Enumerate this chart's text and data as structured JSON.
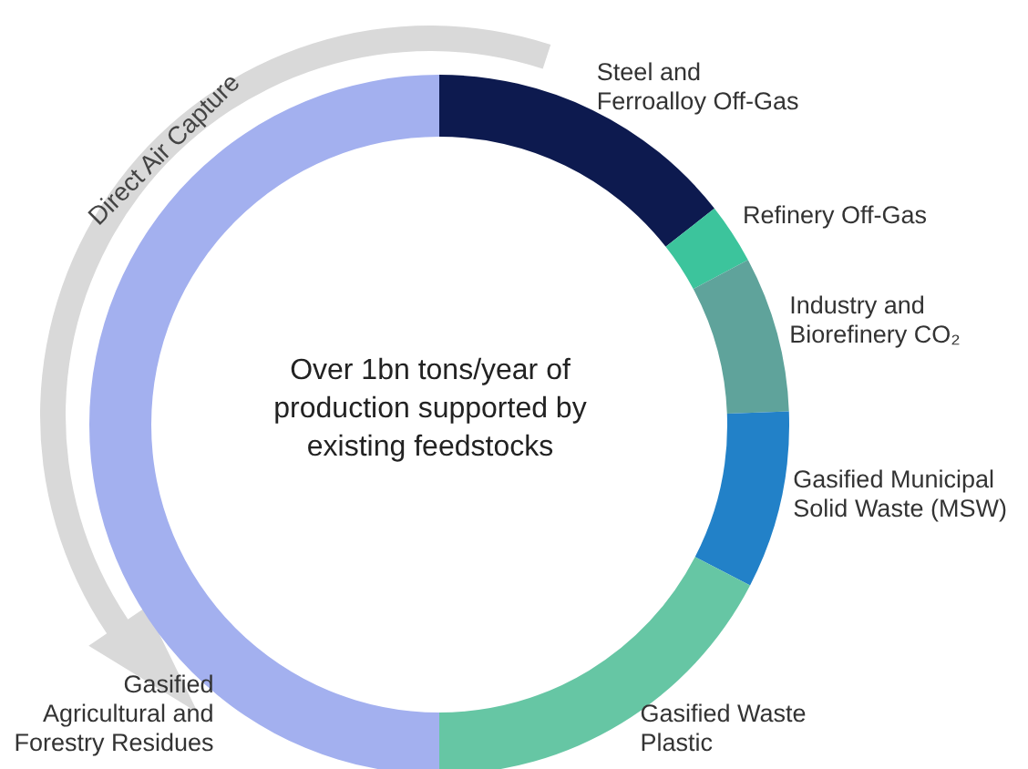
{
  "chart_data": {
    "type": "donut",
    "categories": [
      "Steel and Ferroalloy Off-Gas",
      "Refinery Off-Gas",
      "Industry and Biorefinery CO₂",
      "Gasified Municipal Solid Waste (MSW)",
      "Gasified Waste Plastic",
      "Gasified Agricultural and Forestry Residues"
    ],
    "values": [
      14.4,
      2.8,
      7.2,
      8.2,
      17.4,
      50
    ],
    "colors": [
      "#0d1a4f",
      "#3cc49c",
      "#5fa39b",
      "#2281c8",
      "#66c6a4",
      "#a3b0ef"
    ],
    "annotations": [
      "Over 1bn tons/year of production supported by existing feedstocks",
      "Direct Air Capture"
    ],
    "legend": false
  }
}
